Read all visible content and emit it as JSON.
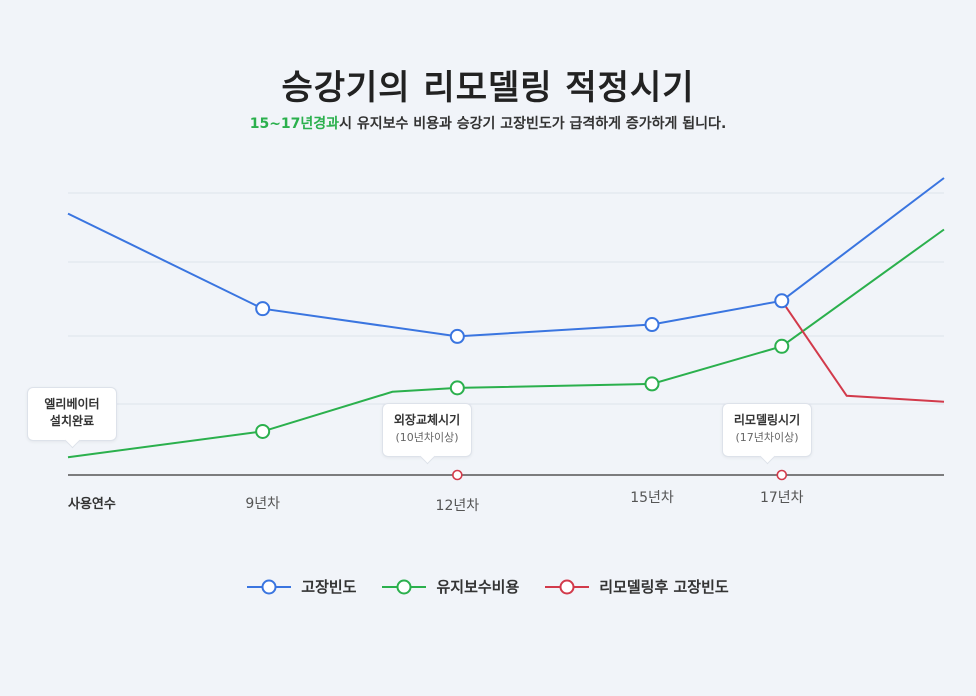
{
  "header": {
    "title": "승강기의 리모델링 적정시기",
    "subtitle_highlight": "15~17년경과",
    "subtitle_rest": "시 유지보수 비용과 승강기 고장빈도가 급격하게 증가하게 됩니다."
  },
  "chart_data": {
    "type": "line",
    "x_axis_label": "사용연수",
    "x_ticks": [
      "9년차",
      "12년차",
      "15년차",
      "17년차"
    ],
    "series": [
      {
        "name": "고장빈도",
        "color": "#3a75e0",
        "points": [
          [
            6,
            6.6
          ],
          [
            9,
            4.2
          ],
          [
            12,
            3.5
          ],
          [
            15,
            3.8
          ],
          [
            17,
            4.4
          ],
          [
            19.5,
            7.5
          ]
        ],
        "markers": [
          1,
          2,
          3,
          4
        ]
      },
      {
        "name": "유지보수비용",
        "color": "#2bb04d",
        "points": [
          [
            6,
            0.45
          ],
          [
            9,
            1.1
          ],
          [
            11,
            2.1
          ],
          [
            12,
            2.2
          ],
          [
            15,
            2.3
          ],
          [
            17,
            3.25
          ],
          [
            19.5,
            6.2
          ]
        ],
        "markers": [
          1,
          3,
          4,
          5
        ]
      },
      {
        "name": "리모델링후 고장빈도",
        "color": "#d23a4b",
        "points": [
          [
            17,
            4.4
          ],
          [
            18,
            2.0
          ],
          [
            19.5,
            1.85
          ]
        ],
        "markers": []
      }
    ],
    "axis_markers": [
      {
        "x": 12,
        "color": "#d23a4b"
      },
      {
        "x": 17,
        "color": "#d23a4b"
      }
    ],
    "annotations": [
      {
        "lines": [
          "엘리베이터",
          "설치완료"
        ],
        "sub": ""
      },
      {
        "lines": [
          "외장교체시기"
        ],
        "sub": "(10년차이상)"
      },
      {
        "lines": [
          "리모델링시기"
        ],
        "sub": "(17년차이상)"
      }
    ],
    "grid": true,
    "legend": "bottom-center"
  }
}
